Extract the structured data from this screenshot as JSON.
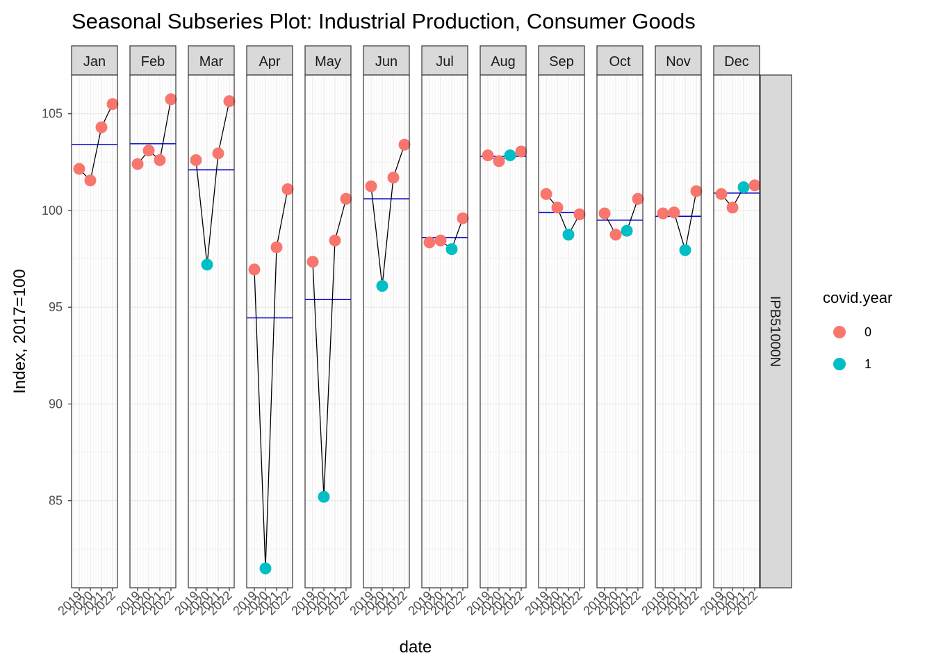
{
  "chart_data": {
    "type": "line",
    "title": "Seasonal Subseries Plot: Industrial Production, Consumer Goods",
    "xlabel": "date",
    "ylabel": "Index, 2017=100",
    "ylim": [
      80.5,
      107
    ],
    "yticks": [
      85,
      90,
      95,
      100,
      105
    ],
    "x": [
      "2019",
      "2020",
      "2021",
      "2022"
    ],
    "facet_label": "IPB51000N",
    "legend": {
      "title": "covid.year",
      "entries": [
        "0",
        "1"
      ],
      "position": "right"
    },
    "colors": {
      "0": "#F8766D",
      "1": "#00BFC4",
      "mean_line": "#0000CC",
      "line": "#000000"
    },
    "grid": true,
    "panels": [
      {
        "month": "Jan",
        "values": [
          102.15,
          101.55,
          104.3,
          105.5
        ],
        "covid": [
          0,
          0,
          0,
          0
        ],
        "mean": 103.4
      },
      {
        "month": "Feb",
        "values": [
          102.4,
          103.1,
          102.6,
          105.75
        ],
        "covid": [
          0,
          0,
          0,
          0
        ],
        "mean": 103.45
      },
      {
        "month": "Mar",
        "values": [
          102.6,
          97.2,
          102.95,
          105.65
        ],
        "covid": [
          0,
          1,
          0,
          0
        ],
        "mean": 102.1
      },
      {
        "month": "Apr",
        "values": [
          96.95,
          81.5,
          98.1,
          101.1
        ],
        "covid": [
          0,
          1,
          0,
          0
        ],
        "mean": 94.45
      },
      {
        "month": "May",
        "values": [
          97.35,
          85.2,
          98.45,
          100.6
        ],
        "covid": [
          0,
          1,
          0,
          0
        ],
        "mean": 95.4
      },
      {
        "month": "Jun",
        "values": [
          101.25,
          96.1,
          101.7,
          103.4
        ],
        "covid": [
          0,
          1,
          0,
          0
        ],
        "mean": 100.6
      },
      {
        "month": "Jul",
        "values": [
          98.35,
          98.45,
          98.0,
          99.6
        ],
        "covid": [
          0,
          0,
          1,
          0
        ],
        "mean": 98.6
      },
      {
        "month": "Aug",
        "values": [
          102.85,
          102.55,
          102.85,
          103.05
        ],
        "covid": [
          0,
          0,
          1,
          0
        ],
        "mean": 102.8
      },
      {
        "month": "Sep",
        "values": [
          100.85,
          100.15,
          98.75,
          99.8
        ],
        "covid": [
          0,
          0,
          1,
          0
        ],
        "mean": 99.9
      },
      {
        "month": "Oct",
        "values": [
          99.85,
          98.75,
          98.95,
          100.6
        ],
        "covid": [
          0,
          0,
          1,
          0
        ],
        "mean": 99.5
      },
      {
        "month": "Nov",
        "values": [
          99.85,
          99.9,
          97.95,
          101.0
        ],
        "covid": [
          0,
          0,
          1,
          0
        ],
        "mean": 99.7
      },
      {
        "month": "Dec",
        "values": [
          100.85,
          100.15,
          101.2,
          101.3
        ],
        "covid": [
          0,
          0,
          1,
          0
        ],
        "mean": 100.9
      }
    ]
  }
}
